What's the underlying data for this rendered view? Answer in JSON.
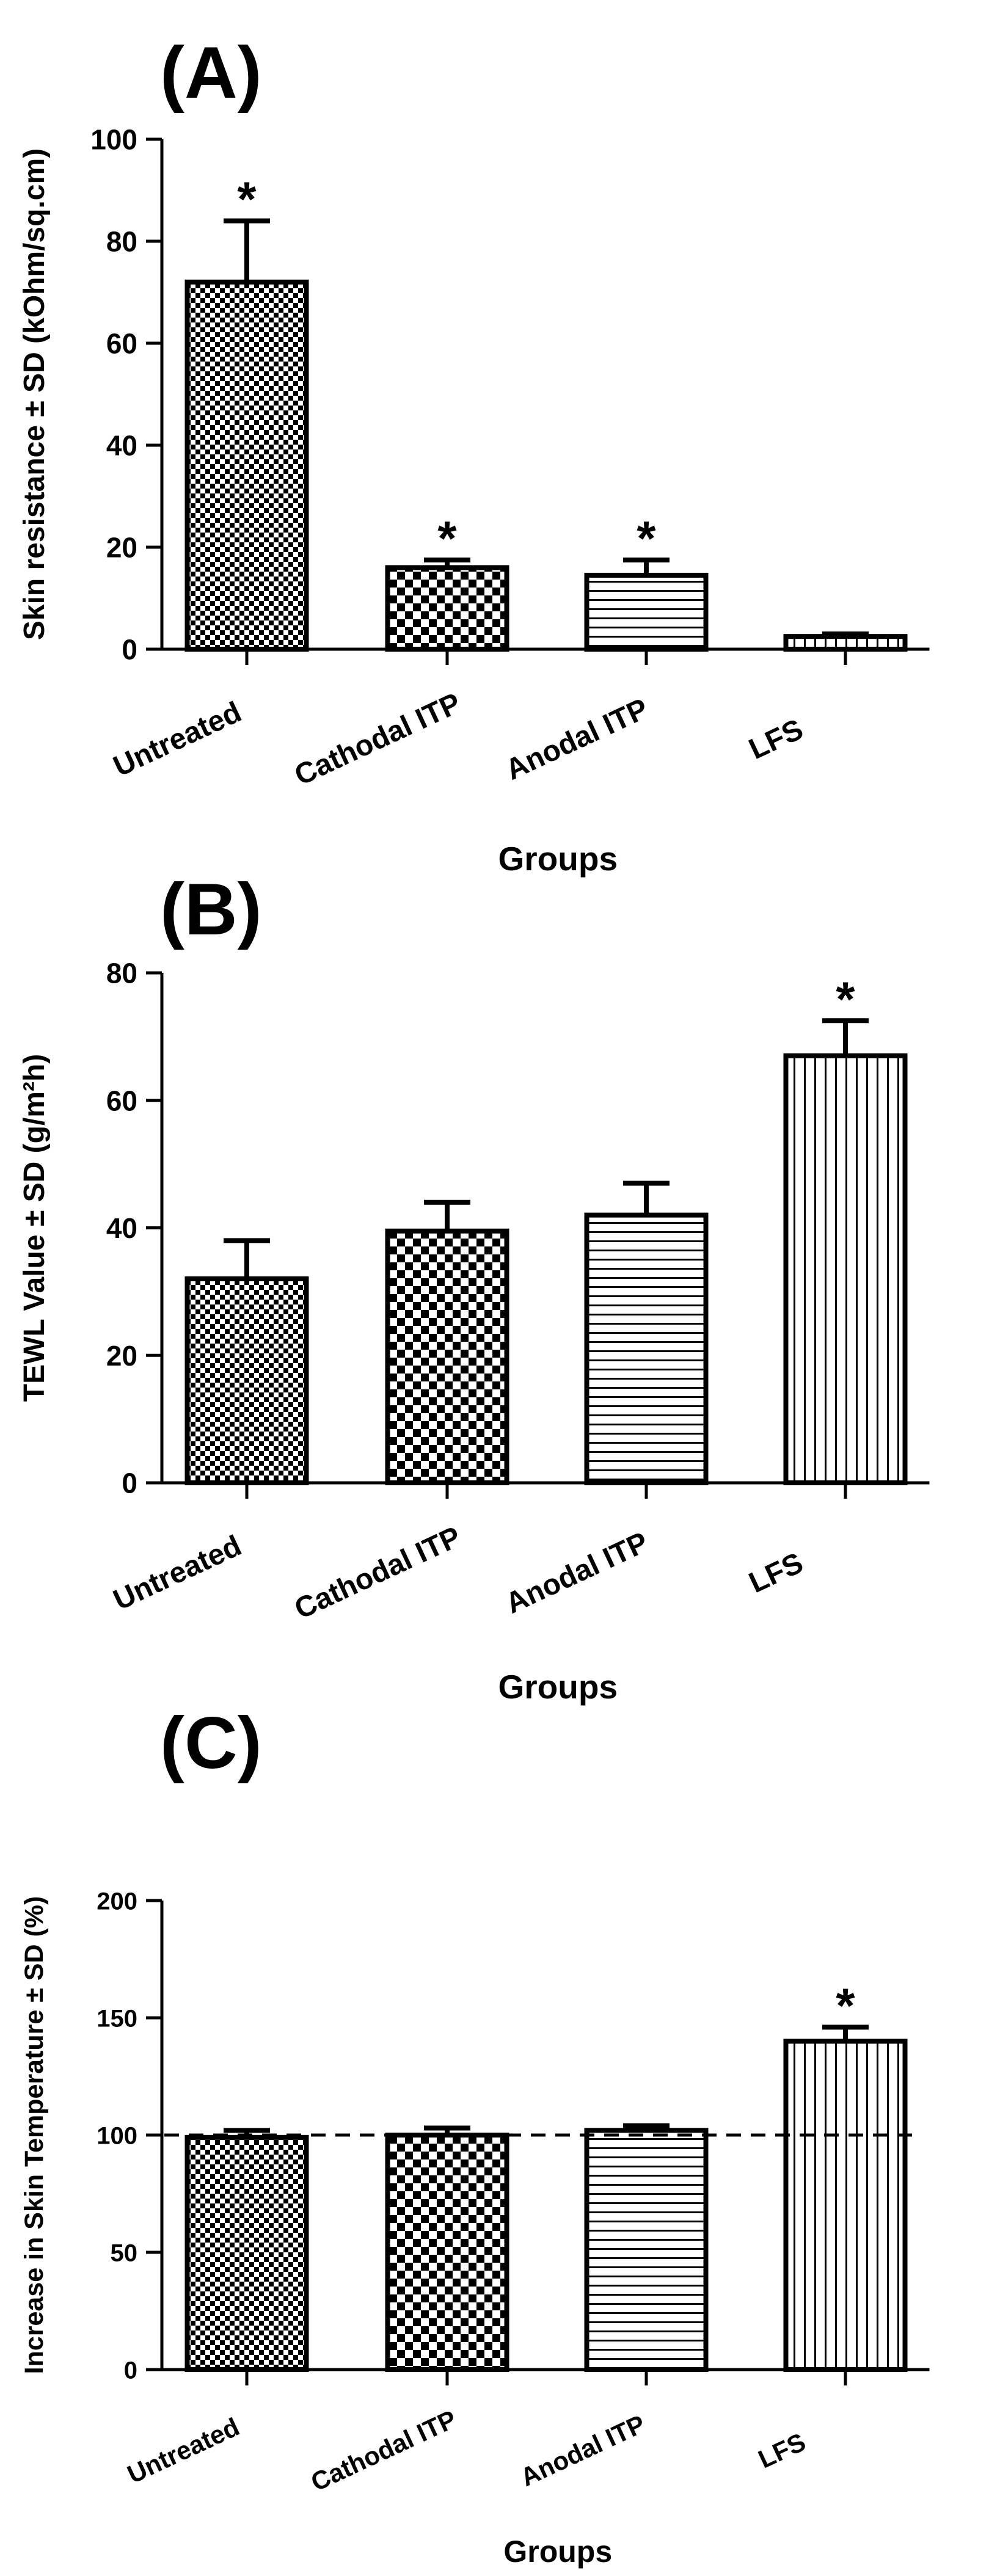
{
  "colors": {
    "ink": "#000000",
    "background": "#ffffff"
  },
  "chart_data": [
    {
      "type": "bar",
      "panel_label": "(A)",
      "categories": [
        "Untreated",
        "Cathodal ITP",
        "Anodal ITP",
        "LFS"
      ],
      "values": [
        72,
        16,
        14.5,
        2.5
      ],
      "errors": [
        12,
        1.5,
        3,
        0.5
      ],
      "significant": [
        true,
        true,
        true,
        false
      ],
      "patterns": [
        "fine-check",
        "check",
        "hlines",
        "vlines"
      ],
      "annotation_text": "*",
      "xlabel": "Groups",
      "ylabel": "Skin resistance ± SD (kOhm/sq.cm)",
      "ylim": [
        0,
        100
      ],
      "yticks": [
        0,
        20,
        40,
        60,
        80,
        100
      ],
      "reference_line": null
    },
    {
      "type": "bar",
      "panel_label": "(B)",
      "categories": [
        "Untreated",
        "Cathodal ITP",
        "Anodal ITP",
        "LFS"
      ],
      "values": [
        32,
        39.5,
        42,
        67
      ],
      "errors": [
        6,
        4.5,
        5,
        5.5
      ],
      "significant": [
        false,
        false,
        false,
        true
      ],
      "patterns": [
        "fine-check",
        "check",
        "hlines",
        "vlines"
      ],
      "annotation_text": "*",
      "xlabel": "Groups",
      "ylabel": "TEWL Value ± SD (g/m²h)",
      "ylim": [
        0,
        80
      ],
      "yticks": [
        0,
        20,
        40,
        60,
        80
      ],
      "reference_line": null
    },
    {
      "type": "bar",
      "panel_label": "(C)",
      "categories": [
        "Untreated",
        "Cathodal ITP",
        "Anodal ITP",
        "LFS"
      ],
      "values": [
        99,
        100,
        102,
        140
      ],
      "errors": [
        3,
        3,
        2,
        6
      ],
      "significant": [
        false,
        false,
        false,
        true
      ],
      "patterns": [
        "fine-check",
        "check",
        "hlines",
        "vlines"
      ],
      "annotation_text": "*",
      "xlabel": "Groups",
      "ylabel": "Increase in Skin Temperature ± SD (%)",
      "ylim": [
        0,
        200
      ],
      "yticks": [
        0,
        50,
        100,
        150,
        200
      ],
      "reference_line": 100
    }
  ]
}
